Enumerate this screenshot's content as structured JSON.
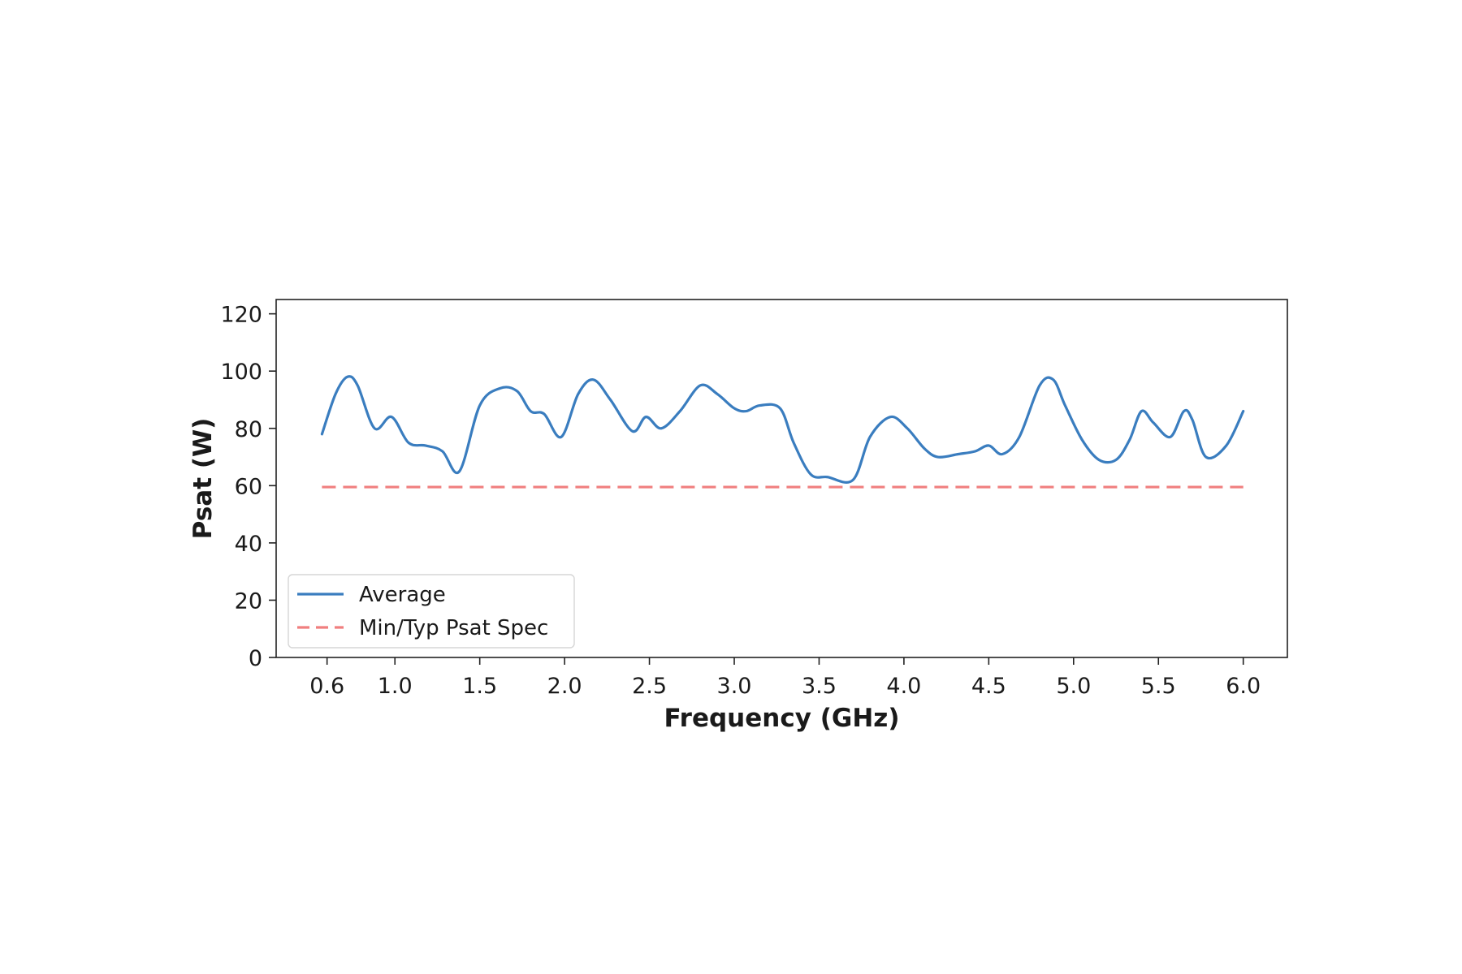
{
  "chart_data": {
    "type": "line",
    "title": "",
    "xlabel": "Frequency (GHz)",
    "ylabel": "Psat (W)",
    "xlim": [
      0.3,
      6.26
    ],
    "ylim": [
      0,
      125
    ],
    "xticks": [
      0.6,
      1.0,
      1.5,
      2.0,
      2.5,
      3.0,
      3.5,
      4.0,
      4.5,
      5.0,
      5.5,
      6.0
    ],
    "xtick_labels": [
      "0.6",
      "1.0",
      "1.5",
      "2.0",
      "2.5",
      "3.0",
      "3.5",
      "4.0",
      "4.5",
      "5.0",
      "5.5",
      "6.0"
    ],
    "yticks": [
      0,
      20,
      40,
      60,
      80,
      100,
      120
    ],
    "ytick_labels": [
      "0",
      "20",
      "40",
      "60",
      "80",
      "100",
      "120"
    ],
    "grid": false,
    "legend": {
      "position": "lower-left",
      "entries": [
        {
          "label": "Average",
          "style": "solid",
          "color": "#3a7dbf"
        },
        {
          "label": "Min/Typ Psat Spec",
          "style": "dashed",
          "color": "#f07f7f"
        }
      ]
    },
    "series": [
      {
        "name": "Average",
        "color": "#3a7dbf",
        "style": "solid",
        "x": [
          0.57,
          0.65,
          0.72,
          0.78,
          0.88,
          0.98,
          1.08,
          1.18,
          1.28,
          1.38,
          1.5,
          1.62,
          1.72,
          1.8,
          1.88,
          1.98,
          2.08,
          2.17,
          2.27,
          2.4,
          2.48,
          2.57,
          2.68,
          2.8,
          2.9,
          3.0,
          3.07,
          3.15,
          3.27,
          3.35,
          3.45,
          3.55,
          3.7,
          3.8,
          3.92,
          4.02,
          4.12,
          4.2,
          4.32,
          4.42,
          4.5,
          4.58,
          4.68,
          4.8,
          4.88,
          4.95,
          5.05,
          5.15,
          5.25,
          5.33,
          5.4,
          5.47,
          5.57,
          5.65,
          5.7,
          5.78,
          5.9,
          6.0
        ],
        "y": [
          78,
          92,
          98,
          95,
          80,
          84,
          75,
          74,
          72,
          65,
          88,
          94,
          93,
          86,
          85,
          77,
          92,
          97,
          90,
          79,
          84,
          80,
          86,
          95,
          92,
          87,
          86,
          88,
          87,
          75,
          64,
          63,
          62,
          77,
          84,
          80,
          73,
          70,
          71,
          72,
          74,
          71,
          77,
          95,
          97,
          88,
          76,
          69,
          69,
          76,
          86,
          82,
          77,
          86,
          83,
          70,
          74,
          86
        ]
      },
      {
        "name": "Min/Typ Psat Spec",
        "color": "#f07f7f",
        "style": "dashed",
        "x": [
          0.57,
          6.0
        ],
        "y": [
          59.5,
          59.5
        ]
      }
    ]
  }
}
